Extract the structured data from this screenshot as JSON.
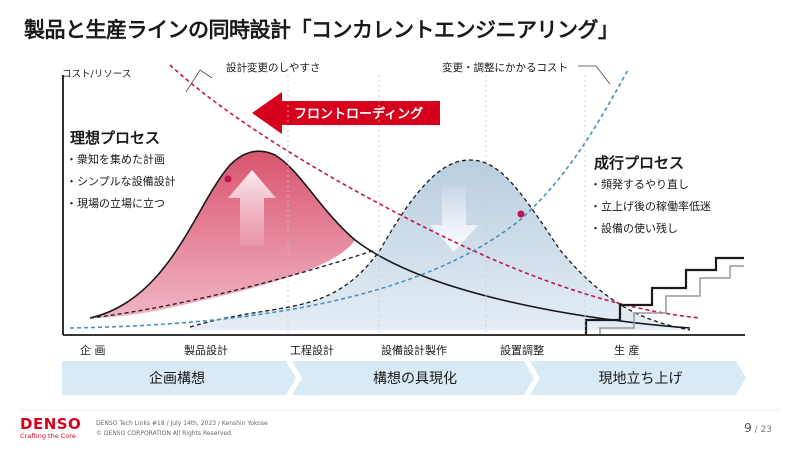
{
  "title": "製品と生産ラインの同時設計「コンカレントエンジニアリング」",
  "y_axis_label": "コスト/リソース",
  "curve_labels": {
    "ease_of_change": "設計変更のしやすさ",
    "cost_of_change": "変更・調整にかかるコスト"
  },
  "front_loading": "フロントローディング",
  "ideal_process": {
    "title": "理想プロセス",
    "items": [
      "衆知を集めた計画",
      "シンプルな設備設計",
      "現場の立場に立つ"
    ]
  },
  "actual_process": {
    "title": "成行プロセス",
    "items": [
      "頻発するやり直し",
      "立上げ後の稼働率低迷",
      "設備の使い残し"
    ]
  },
  "stages": [
    "企 画",
    "製品設計",
    "工程設計",
    "設備設計製作",
    "設置調整",
    "生 産"
  ],
  "phases": [
    "企画構想",
    "構想の具現化",
    "現地立ち上げ"
  ],
  "colors": {
    "ideal_fill": "#e07a94",
    "actual_fill": "#c9d9e6",
    "ease_line": "#c0154f",
    "cost_line": "#4a90c2",
    "brand": "#d6001c",
    "phase_band": "#d8eaf5"
  },
  "footer": {
    "logo": "DENSO",
    "tagline": "Crafting the Core",
    "event": "DENSO Tech Links #18 / July 14th, 2023 / Kenshin Yokose",
    "copyright": "© DENSO CORPORATION All Rights Reserved.",
    "page": "9",
    "total": "/ 23"
  }
}
